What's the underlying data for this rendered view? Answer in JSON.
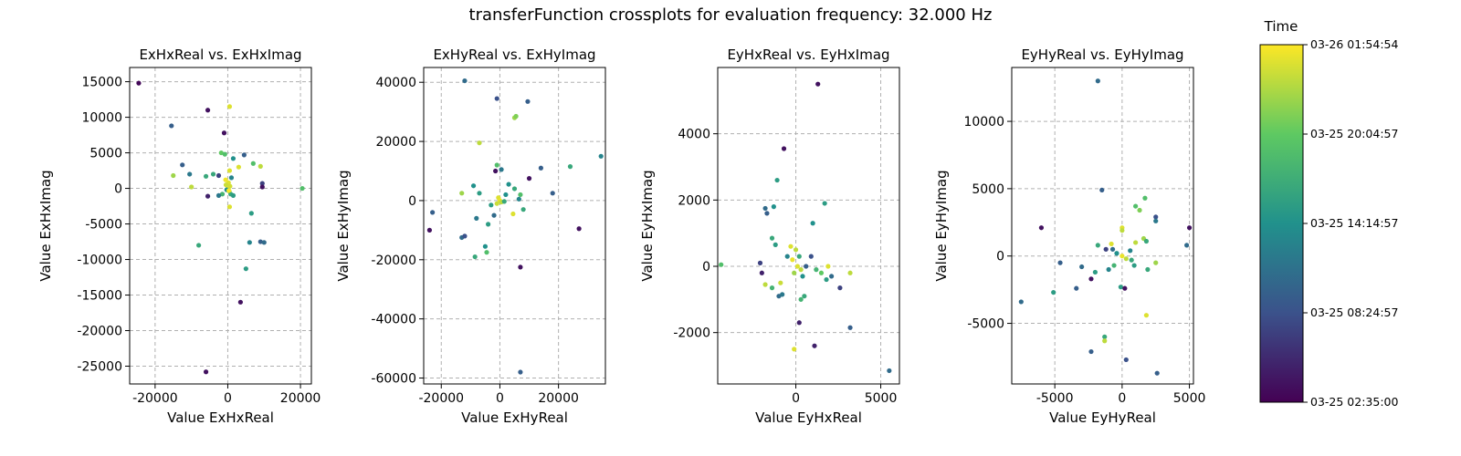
{
  "figure": {
    "title": "transferFunction crossplots for evaluation frequency: 32.000 Hz"
  },
  "colorbar": {
    "label": "Time",
    "colormap": "viridis",
    "colors": [
      "#440154",
      "#3b528b",
      "#21918c",
      "#5ec962",
      "#fde725"
    ],
    "ticks": [
      "03-25 02:35:00",
      "03-25 08:24:57",
      "03-25 14:14:57",
      "03-25 20:04:57",
      "03-26 01:54:54"
    ]
  },
  "chart_data": [
    {
      "type": "scatter",
      "title": "ExHxReal vs. ExHxImag",
      "xlabel": "Value ExHxReal",
      "ylabel": "Value ExHxImag",
      "xlim": [
        -27000,
        23000
      ],
      "ylim": [
        -27500,
        17000
      ],
      "xticks": [
        -20000,
        0,
        20000
      ],
      "yticks": [
        15000,
        10000,
        5000,
        0,
        -5000,
        -10000,
        -15000,
        -20000,
        -25000
      ],
      "grid": true,
      "points": [
        {
          "x": -24500,
          "y": 14800,
          "t": 0.02
        },
        {
          "x": -15500,
          "y": 8800,
          "t": 0.3
        },
        {
          "x": -5500,
          "y": 11000,
          "t": 0.05
        },
        {
          "x": 500,
          "y": 11500,
          "t": 0.95
        },
        {
          "x": -1000,
          "y": 7800,
          "t": 0.05
        },
        {
          "x": -15000,
          "y": 1800,
          "t": 0.85
        },
        {
          "x": -12500,
          "y": 3300,
          "t": 0.3
        },
        {
          "x": -10500,
          "y": 2000,
          "t": 0.4
        },
        {
          "x": -10000,
          "y": 200,
          "t": 0.9
        },
        {
          "x": -6000,
          "y": 1700,
          "t": 0.6
        },
        {
          "x": -4000,
          "y": 2000,
          "t": 0.6
        },
        {
          "x": -2500,
          "y": 1800,
          "t": 0.2
        },
        {
          "x": -1800,
          "y": 5000,
          "t": 0.75
        },
        {
          "x": -800,
          "y": 4800,
          "t": 0.7
        },
        {
          "x": 1500,
          "y": 4200,
          "t": 0.5
        },
        {
          "x": 4500,
          "y": 4700,
          "t": 0.3
        },
        {
          "x": 3000,
          "y": 3000,
          "t": 0.95
        },
        {
          "x": 7000,
          "y": 3500,
          "t": 0.7
        },
        {
          "x": 9000,
          "y": 3100,
          "t": 0.9
        },
        {
          "x": 9500,
          "y": 700,
          "t": 0.2
        },
        {
          "x": 9500,
          "y": 200,
          "t": 0.05
        },
        {
          "x": 20500,
          "y": 0,
          "t": 0.7
        },
        {
          "x": 500,
          "y": 2500,
          "t": 0.95
        },
        {
          "x": 1000,
          "y": 1500,
          "t": 0.45
        },
        {
          "x": 200,
          "y": 800,
          "t": 0.95
        },
        {
          "x": -500,
          "y": 500,
          "t": 0.92
        },
        {
          "x": 0,
          "y": 0,
          "t": 0.97
        },
        {
          "x": 400,
          "y": -400,
          "t": 0.88
        },
        {
          "x": -300,
          "y": -200,
          "t": 0.5
        },
        {
          "x": 800,
          "y": -800,
          "t": 0.6
        },
        {
          "x": 1500,
          "y": -1000,
          "t": 0.55
        },
        {
          "x": -1500,
          "y": -800,
          "t": 0.65
        },
        {
          "x": -2500,
          "y": -1000,
          "t": 0.4
        },
        {
          "x": -5500,
          "y": -1100,
          "t": 0.1
        },
        {
          "x": -600,
          "y": 1200,
          "t": 0.98
        },
        {
          "x": 300,
          "y": -300,
          "t": 0.99
        },
        {
          "x": 600,
          "y": 300,
          "t": 0.93
        },
        {
          "x": 500,
          "y": -2600,
          "t": 0.95
        },
        {
          "x": 6500,
          "y": -3500,
          "t": 0.55
        },
        {
          "x": -8000,
          "y": -8000,
          "t": 0.6
        },
        {
          "x": 6000,
          "y": -7600,
          "t": 0.45
        },
        {
          "x": 9000,
          "y": -7500,
          "t": 0.3
        },
        {
          "x": 10000,
          "y": -7600,
          "t": 0.35
        },
        {
          "x": 5000,
          "y": -11300,
          "t": 0.55
        },
        {
          "x": 3500,
          "y": -16000,
          "t": 0.05
        },
        {
          "x": -6000,
          "y": -25800,
          "t": 0.05
        }
      ]
    },
    {
      "type": "scatter",
      "title": "ExHyReal vs. ExHyImag",
      "xlabel": "Value ExHyReal",
      "ylabel": "Value ExHyImag",
      "xlim": [
        -26000,
        36000
      ],
      "ylim": [
        -62000,
        45000
      ],
      "xticks": [
        -20000,
        0,
        20000
      ],
      "yticks": [
        40000,
        20000,
        0,
        -20000,
        -40000,
        -60000
      ],
      "grid": true,
      "points": [
        {
          "x": -12000,
          "y": 40500,
          "t": 0.35
        },
        {
          "x": -1000,
          "y": 34500,
          "t": 0.25
        },
        {
          "x": 9500,
          "y": 33500,
          "t": 0.3
        },
        {
          "x": 5000,
          "y": 28000,
          "t": 0.85
        },
        {
          "x": 5500,
          "y": 28500,
          "t": 0.8
        },
        {
          "x": -7000,
          "y": 19500,
          "t": 0.9
        },
        {
          "x": 34500,
          "y": 15000,
          "t": 0.45
        },
        {
          "x": 24000,
          "y": 11500,
          "t": 0.6
        },
        {
          "x": 14000,
          "y": 11000,
          "t": 0.3
        },
        {
          "x": -1000,
          "y": 12000,
          "t": 0.7
        },
        {
          "x": 500,
          "y": 10500,
          "t": 0.4
        },
        {
          "x": -1500,
          "y": 10000,
          "t": 0.05
        },
        {
          "x": 10000,
          "y": 7500,
          "t": 0.05
        },
        {
          "x": 18000,
          "y": 2500,
          "t": 0.3
        },
        {
          "x": -9000,
          "y": 5000,
          "t": 0.5
        },
        {
          "x": -7000,
          "y": 2500,
          "t": 0.55
        },
        {
          "x": -13000,
          "y": 2500,
          "t": 0.85
        },
        {
          "x": 3000,
          "y": 5500,
          "t": 0.5
        },
        {
          "x": 5000,
          "y": 4000,
          "t": 0.6
        },
        {
          "x": 7000,
          "y": 2000,
          "t": 0.7
        },
        {
          "x": 6500,
          "y": 500,
          "t": 0.45
        },
        {
          "x": 2000,
          "y": 2000,
          "t": 0.5
        },
        {
          "x": -500,
          "y": 1000,
          "t": 0.95
        },
        {
          "x": 0,
          "y": 0,
          "t": 0.97
        },
        {
          "x": 500,
          "y": -500,
          "t": 0.9
        },
        {
          "x": -1000,
          "y": -1000,
          "t": 0.92
        },
        {
          "x": 1500,
          "y": -300,
          "t": 0.6
        },
        {
          "x": -3000,
          "y": -1500,
          "t": 0.55
        },
        {
          "x": -2000,
          "y": -5000,
          "t": 0.35
        },
        {
          "x": 4500,
          "y": -4500,
          "t": 0.95
        },
        {
          "x": 8000,
          "y": -3000,
          "t": 0.6
        },
        {
          "x": -8000,
          "y": -6000,
          "t": 0.4
        },
        {
          "x": -4000,
          "y": -8000,
          "t": 0.55
        },
        {
          "x": -23000,
          "y": -4000,
          "t": 0.3
        },
        {
          "x": -24000,
          "y": -10000,
          "t": 0.05
        },
        {
          "x": -13000,
          "y": -12500,
          "t": 0.35
        },
        {
          "x": -12000,
          "y": -12000,
          "t": 0.25
        },
        {
          "x": -5000,
          "y": -15500,
          "t": 0.5
        },
        {
          "x": -4500,
          "y": -17500,
          "t": 0.7
        },
        {
          "x": -8500,
          "y": -19000,
          "t": 0.6
        },
        {
          "x": 27000,
          "y": -9500,
          "t": 0.05
        },
        {
          "x": 7000,
          "y": -22500,
          "t": 0.05
        },
        {
          "x": 7000,
          "y": -58000,
          "t": 0.3
        }
      ]
    },
    {
      "type": "scatter",
      "title": "EyHxReal vs. EyHxImag",
      "xlabel": "Value EyHxReal",
      "ylabel": "Value EyHxImag",
      "xlim": [
        -4600,
        6100
      ],
      "ylim": [
        -3550,
        6000
      ],
      "xticks": [
        0,
        5000
      ],
      "yticks": [
        4000,
        2000,
        0,
        -2000
      ],
      "grid": true,
      "points": [
        {
          "x": 1300,
          "y": 5500,
          "t": 0.05
        },
        {
          "x": -700,
          "y": 3550,
          "t": 0.05
        },
        {
          "x": -1100,
          "y": 2600,
          "t": 0.55
        },
        {
          "x": 1700,
          "y": 1900,
          "t": 0.55
        },
        {
          "x": -1800,
          "y": 1750,
          "t": 0.35
        },
        {
          "x": -1700,
          "y": 1600,
          "t": 0.3
        },
        {
          "x": -1300,
          "y": 1800,
          "t": 0.5
        },
        {
          "x": 1000,
          "y": 1300,
          "t": 0.5
        },
        {
          "x": -1400,
          "y": 850,
          "t": 0.6
        },
        {
          "x": -1200,
          "y": 650,
          "t": 0.55
        },
        {
          "x": -4400,
          "y": 50,
          "t": 0.7
        },
        {
          "x": -2100,
          "y": 100,
          "t": 0.2
        },
        {
          "x": -2000,
          "y": -200,
          "t": 0.1
        },
        {
          "x": -1800,
          "y": -550,
          "t": 0.9
        },
        {
          "x": -1400,
          "y": -650,
          "t": 0.65
        },
        {
          "x": -900,
          "y": -500,
          "t": 0.92
        },
        {
          "x": -1000,
          "y": -900,
          "t": 0.35
        },
        {
          "x": -800,
          "y": -850,
          "t": 0.4
        },
        {
          "x": -500,
          "y": 300,
          "t": 0.45
        },
        {
          "x": -300,
          "y": 600,
          "t": 0.95
        },
        {
          "x": 0,
          "y": 500,
          "t": 0.9
        },
        {
          "x": 200,
          "y": 300,
          "t": 0.6
        },
        {
          "x": -200,
          "y": 200,
          "t": 0.97
        },
        {
          "x": 100,
          "y": 0,
          "t": 0.95
        },
        {
          "x": 300,
          "y": -100,
          "t": 0.9
        },
        {
          "x": -100,
          "y": -200,
          "t": 0.85
        },
        {
          "x": 400,
          "y": -300,
          "t": 0.5
        },
        {
          "x": 600,
          "y": 0,
          "t": 0.3
        },
        {
          "x": 900,
          "y": 300,
          "t": 0.25
        },
        {
          "x": 1200,
          "y": -100,
          "t": 0.65
        },
        {
          "x": 1500,
          "y": -200,
          "t": 0.75
        },
        {
          "x": 1900,
          "y": 0,
          "t": 0.95
        },
        {
          "x": 3200,
          "y": -200,
          "t": 0.9
        },
        {
          "x": 2100,
          "y": -300,
          "t": 0.35
        },
        {
          "x": 1800,
          "y": -400,
          "t": 0.55
        },
        {
          "x": 2600,
          "y": -650,
          "t": 0.2
        },
        {
          "x": 500,
          "y": -900,
          "t": 0.6
        },
        {
          "x": 300,
          "y": -1000,
          "t": 0.65
        },
        {
          "x": 200,
          "y": -1700,
          "t": 0.1
        },
        {
          "x": 3200,
          "y": -1850,
          "t": 0.3
        },
        {
          "x": 1100,
          "y": -2400,
          "t": 0.1
        },
        {
          "x": -100,
          "y": -2500,
          "t": 0.95
        },
        {
          "x": 5500,
          "y": -3150,
          "t": 0.35
        }
      ]
    },
    {
      "type": "scatter",
      "title": "EyHyReal vs. EyHyImag",
      "xlabel": "Value EyHyReal",
      "ylabel": "Value EyHyImag",
      "xlim": [
        -8200,
        5300
      ],
      "ylim": [
        -9500,
        14000
      ],
      "xticks": [
        -5000,
        0,
        5000
      ],
      "yticks": [
        10000,
        5000,
        0,
        -5000
      ],
      "grid": true,
      "points": [
        {
          "x": -1800,
          "y": 13000,
          "t": 0.35
        },
        {
          "x": -1500,
          "y": 4900,
          "t": 0.3
        },
        {
          "x": 1700,
          "y": 4300,
          "t": 0.7
        },
        {
          "x": 1000,
          "y": 3700,
          "t": 0.7
        },
        {
          "x": 1300,
          "y": 3400,
          "t": 0.8
        },
        {
          "x": 2500,
          "y": 2900,
          "t": 0.25
        },
        {
          "x": 2500,
          "y": 2600,
          "t": 0.4
        },
        {
          "x": 5000,
          "y": 2100,
          "t": 0.05
        },
        {
          "x": 4800,
          "y": 800,
          "t": 0.35
        },
        {
          "x": -6000,
          "y": 2100,
          "t": 0.05
        },
        {
          "x": 0,
          "y": 2100,
          "t": 0.95
        },
        {
          "x": 0,
          "y": 1900,
          "t": 0.9
        },
        {
          "x": 1000,
          "y": 1000,
          "t": 0.9
        },
        {
          "x": 1600,
          "y": 1300,
          "t": 0.85
        },
        {
          "x": 1800,
          "y": 1100,
          "t": 0.6
        },
        {
          "x": -1800,
          "y": 800,
          "t": 0.6
        },
        {
          "x": -800,
          "y": 900,
          "t": 0.95
        },
        {
          "x": -1200,
          "y": 500,
          "t": 0.2
        },
        {
          "x": -700,
          "y": 500,
          "t": 0.35
        },
        {
          "x": -400,
          "y": 200,
          "t": 0.5
        },
        {
          "x": 0,
          "y": 0,
          "t": 0.97
        },
        {
          "x": 300,
          "y": -200,
          "t": 0.9
        },
        {
          "x": 700,
          "y": -300,
          "t": 0.6
        },
        {
          "x": 600,
          "y": 400,
          "t": 0.45
        },
        {
          "x": 900,
          "y": -700,
          "t": 0.55
        },
        {
          "x": 2500,
          "y": -500,
          "t": 0.85
        },
        {
          "x": 1900,
          "y": -1000,
          "t": 0.6
        },
        {
          "x": -4600,
          "y": -500,
          "t": 0.3
        },
        {
          "x": -3000,
          "y": -800,
          "t": 0.35
        },
        {
          "x": -2000,
          "y": -1200,
          "t": 0.55
        },
        {
          "x": -1000,
          "y": -1000,
          "t": 0.45
        },
        {
          "x": -600,
          "y": -700,
          "t": 0.65
        },
        {
          "x": -2300,
          "y": -1700,
          "t": 0.05
        },
        {
          "x": -3400,
          "y": -2400,
          "t": 0.3
        },
        {
          "x": -5100,
          "y": -2700,
          "t": 0.55
        },
        {
          "x": -7500,
          "y": -3400,
          "t": 0.35
        },
        {
          "x": -100,
          "y": -2300,
          "t": 0.55
        },
        {
          "x": 200,
          "y": -2400,
          "t": 0.05
        },
        {
          "x": 1800,
          "y": -4400,
          "t": 0.95
        },
        {
          "x": -1300,
          "y": -6000,
          "t": 0.6
        },
        {
          "x": -1300,
          "y": -6300,
          "t": 0.9
        },
        {
          "x": -2300,
          "y": -7100,
          "t": 0.3
        },
        {
          "x": 300,
          "y": -7700,
          "t": 0.25
        },
        {
          "x": 2600,
          "y": -8700,
          "t": 0.3
        }
      ]
    }
  ]
}
